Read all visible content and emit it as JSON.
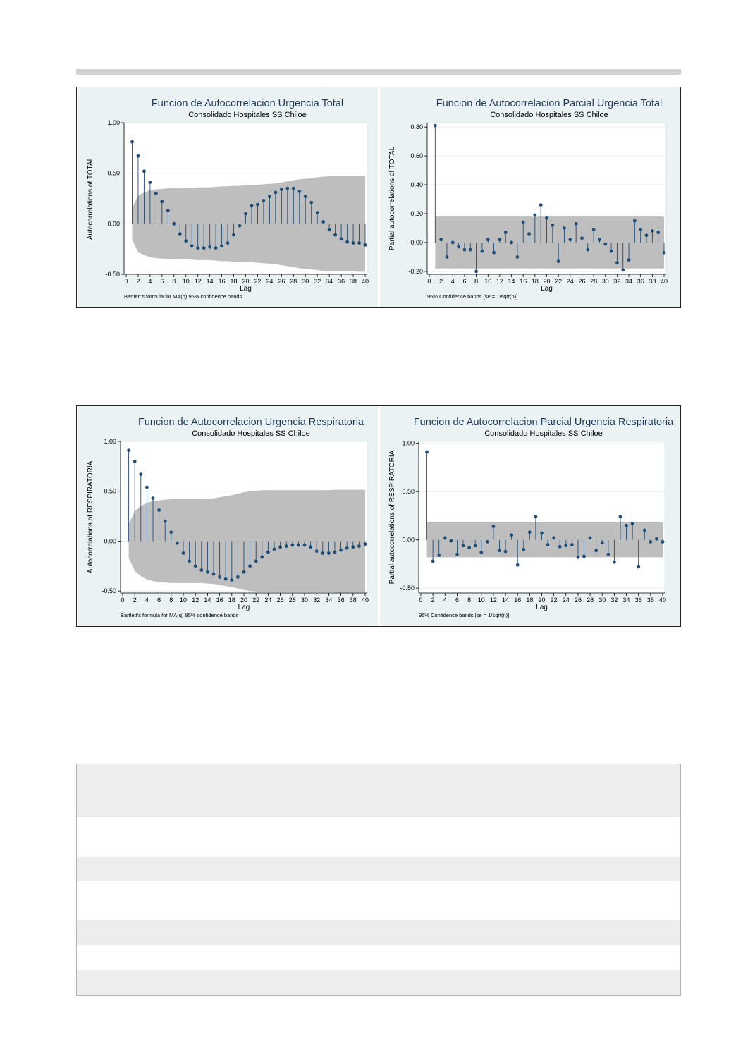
{
  "charts": [
    {
      "title": "Funcion de Autocorrelacion Urgencia Total",
      "subtitle": "Consolidado Hospitales SS Chiloe",
      "ylabel": "Autocorrelations of TOTAL",
      "xlabel": "Lag",
      "note": "Bartlett's formula for MA(q) 95% confidence bands"
    },
    {
      "title": "Funcion de Autocorrelacion Parcial Urgencia Total",
      "subtitle": "Consolidado Hospitales SS Chiloe",
      "ylabel": "Partial autocorrelations of TOTAL",
      "xlabel": "Lag",
      "note": "95% Confidence bands [se = 1/sqrt(n)]"
    },
    {
      "title": "Funcion de Autocorrelacion Urgencia Respiratoria",
      "subtitle": "Consolidado Hospitales SS Chiloe",
      "ylabel": "Autocorrelations of RESPIRATORIA",
      "xlabel": "Lag",
      "note": "Bartlett's formula for MA(q) 95% confidence bands"
    },
    {
      "title": "Funcion de Autocorrelacion Parcial Urgencia Respiratoria",
      "subtitle": "Consolidado Hospitales SS Chiloe",
      "ylabel": "Partial autocorrelations of RESPIRATORIA",
      "xlabel": "Lag",
      "note": "95% Confidence bands [se = 1/sqrt(n)]"
    }
  ],
  "colors": {
    "marker": "#1f4e79",
    "band": "#bebebe",
    "plot_bg": "#ffffff",
    "graph_bg": "#eaf2f3",
    "title": "#1f3a5c"
  },
  "chart_data": [
    {
      "type": "stem",
      "title": "Funcion de Autocorrelacion Urgencia Total",
      "subtitle": "Consolidado Hospitales SS Chiloe",
      "xlabel": "Lag",
      "ylabel": "Autocorrelations of TOTAL",
      "note": "Bartlett's formula for MA(q) 95% confidence bands",
      "ylim": [
        -0.5,
        1.0
      ],
      "yticks": [
        "1.00",
        "0.50",
        "0.00",
        "-0.50"
      ],
      "ytick_values": [
        1.0,
        0.5,
        0.0,
        -0.5
      ],
      "xlim": [
        0,
        40
      ],
      "xticks": [
        0,
        2,
        4,
        6,
        8,
        10,
        12,
        14,
        16,
        18,
        20,
        22,
        24,
        26,
        28,
        30,
        32,
        34,
        36,
        38,
        40
      ],
      "grid": true,
      "x": [
        1,
        2,
        3,
        4,
        5,
        6,
        7,
        8,
        9,
        10,
        11,
        12,
        13,
        14,
        15,
        16,
        17,
        18,
        19,
        20,
        21,
        22,
        23,
        24,
        25,
        26,
        27,
        28,
        29,
        30,
        31,
        32,
        33,
        34,
        35,
        36,
        37,
        38,
        39,
        40
      ],
      "values": [
        0.81,
        0.67,
        0.52,
        0.41,
        0.3,
        0.22,
        0.13,
        0.0,
        -0.1,
        -0.17,
        -0.22,
        -0.24,
        -0.24,
        -0.23,
        -0.24,
        -0.22,
        -0.19,
        -0.11,
        -0.02,
        0.1,
        0.18,
        0.19,
        0.23,
        0.27,
        0.31,
        0.34,
        0.35,
        0.35,
        0.32,
        0.27,
        0.21,
        0.11,
        0.02,
        -0.06,
        -0.11,
        -0.15,
        -0.18,
        -0.19,
        -0.19,
        -0.21
      ],
      "band": [
        0.16,
        0.28,
        0.31,
        0.33,
        0.34,
        0.345,
        0.35,
        0.35,
        0.35,
        0.35,
        0.355,
        0.36,
        0.36,
        0.36,
        0.365,
        0.37,
        0.37,
        0.375,
        0.375,
        0.38,
        0.38,
        0.385,
        0.39,
        0.395,
        0.4,
        0.41,
        0.42,
        0.43,
        0.44,
        0.445,
        0.45,
        0.46,
        0.465,
        0.47,
        0.47,
        0.47,
        0.47,
        0.47,
        0.475,
        0.475
      ]
    },
    {
      "type": "stem",
      "title": "Funcion de Autocorrelacion Parcial Urgencia Total",
      "subtitle": "Consolidado Hospitales SS Chiloe",
      "xlabel": "Lag",
      "ylabel": "Partial autocorrelations of TOTAL",
      "note": "95% Confidence bands [se = 1/sqrt(n)]",
      "ylim": [
        -0.22,
        0.83
      ],
      "yticks": [
        "0.80",
        "0.60",
        "0.40",
        "0.20",
        "0.00",
        "-0.20"
      ],
      "ytick_values": [
        0.8,
        0.6,
        0.4,
        0.2,
        0.0,
        -0.2
      ],
      "xlim": [
        0,
        40
      ],
      "xticks": [
        0,
        2,
        4,
        6,
        8,
        10,
        12,
        14,
        16,
        18,
        20,
        22,
        24,
        26,
        28,
        30,
        32,
        34,
        36,
        38,
        40
      ],
      "grid": true,
      "x": [
        1,
        2,
        3,
        4,
        5,
        6,
        7,
        8,
        9,
        10,
        11,
        12,
        13,
        14,
        15,
        16,
        17,
        18,
        19,
        20,
        21,
        22,
        23,
        24,
        25,
        26,
        27,
        28,
        29,
        30,
        31,
        32,
        33,
        34,
        35,
        36,
        37,
        38,
        39,
        40
      ],
      "values": [
        0.81,
        0.02,
        -0.1,
        0.0,
        -0.03,
        -0.05,
        -0.05,
        -0.2,
        -0.06,
        0.02,
        -0.07,
        0.02,
        0.07,
        0.0,
        -0.1,
        0.14,
        0.06,
        0.19,
        0.26,
        0.17,
        0.12,
        -0.13,
        0.1,
        0.02,
        0.13,
        0.03,
        -0.05,
        0.09,
        0.02,
        -0.01,
        -0.06,
        -0.14,
        -0.19,
        -0.12,
        0.15,
        0.09,
        0.05,
        0.08,
        0.07,
        -0.07
      ],
      "band_const": 0.18
    },
    {
      "type": "stem",
      "title": "Funcion de Autocorrelacion Urgencia Respiratoria",
      "subtitle": "Consolidado Hospitales SS Chiloe",
      "xlabel": "Lag",
      "ylabel": "Autocorrelations of RESPIRATORIA",
      "note": "Bartlett's formula for MA(q) 95% confidence bands",
      "ylim": [
        -0.52,
        1.0
      ],
      "yticks": [
        "1.00",
        "0.50",
        "0.00",
        "-0.50"
      ],
      "ytick_values": [
        1.0,
        0.5,
        0.0,
        -0.5
      ],
      "xlim": [
        0,
        40
      ],
      "xticks": [
        0,
        2,
        4,
        6,
        8,
        10,
        12,
        14,
        16,
        18,
        20,
        22,
        24,
        26,
        28,
        30,
        32,
        34,
        36,
        38,
        40
      ],
      "grid": true,
      "x": [
        1,
        2,
        3,
        4,
        5,
        6,
        7,
        8,
        9,
        10,
        11,
        12,
        13,
        14,
        15,
        16,
        17,
        18,
        19,
        20,
        21,
        22,
        23,
        24,
        25,
        26,
        27,
        28,
        29,
        30,
        31,
        32,
        33,
        34,
        35,
        36,
        37,
        38,
        39,
        40
      ],
      "values": [
        0.91,
        0.8,
        0.67,
        0.54,
        0.43,
        0.31,
        0.2,
        0.09,
        -0.02,
        -0.12,
        -0.2,
        -0.25,
        -0.29,
        -0.31,
        -0.33,
        -0.36,
        -0.38,
        -0.39,
        -0.36,
        -0.31,
        -0.25,
        -0.2,
        -0.16,
        -0.11,
        -0.08,
        -0.06,
        -0.05,
        -0.04,
        -0.04,
        -0.04,
        -0.06,
        -0.1,
        -0.12,
        -0.12,
        -0.11,
        -0.09,
        -0.07,
        -0.06,
        -0.05,
        -0.03
      ],
      "band": [
        0.17,
        0.3,
        0.35,
        0.385,
        0.4,
        0.41,
        0.415,
        0.42,
        0.42,
        0.42,
        0.42,
        0.42,
        0.42,
        0.425,
        0.43,
        0.44,
        0.45,
        0.46,
        0.475,
        0.49,
        0.5,
        0.505,
        0.51,
        0.51,
        0.51,
        0.51,
        0.51,
        0.51,
        0.51,
        0.51,
        0.51,
        0.51,
        0.51,
        0.51,
        0.515,
        0.515,
        0.515,
        0.515,
        0.515,
        0.515
      ]
    },
    {
      "type": "stem",
      "title": "Funcion de Autocorrelacion Parcial Urgencia Respiratoria",
      "subtitle": "Consolidado Hospitales SS Chiloe",
      "xlabel": "Lag",
      "ylabel": "Partial autocorrelations of RESPIRATORIA",
      "note": "95% Confidence bands [se = 1/sqrt(n)]",
      "ylim": [
        -0.55,
        1.02
      ],
      "yticks": [
        "1.00",
        "0.50",
        "0.00",
        "-0.50"
      ],
      "ytick_values": [
        1.0,
        0.5,
        0.0,
        -0.5
      ],
      "xlim": [
        0,
        40
      ],
      "xticks": [
        0,
        2,
        4,
        6,
        8,
        10,
        12,
        14,
        16,
        18,
        20,
        22,
        24,
        26,
        28,
        30,
        32,
        34,
        36,
        38,
        40
      ],
      "grid": true,
      "x": [
        1,
        2,
        3,
        4,
        5,
        6,
        7,
        8,
        9,
        10,
        11,
        12,
        13,
        14,
        15,
        16,
        17,
        18,
        19,
        20,
        21,
        22,
        23,
        24,
        25,
        26,
        27,
        28,
        29,
        30,
        31,
        32,
        33,
        34,
        35,
        36,
        37,
        38,
        39,
        40
      ],
      "values": [
        0.91,
        -0.22,
        -0.16,
        0.02,
        -0.01,
        -0.15,
        -0.06,
        -0.08,
        -0.06,
        -0.13,
        -0.02,
        0.14,
        -0.11,
        -0.12,
        0.05,
        -0.26,
        -0.1,
        0.08,
        0.24,
        0.07,
        -0.05,
        0.02,
        -0.07,
        -0.06,
        -0.05,
        -0.18,
        -0.17,
        0.02,
        -0.11,
        -0.03,
        -0.15,
        -0.23,
        0.24,
        0.15,
        0.17,
        -0.28,
        0.1,
        -0.02,
        0.01,
        -0.02
      ],
      "band_const": 0.18
    }
  ],
  "table": {
    "row_shades": [
      "#ededed",
      "#ffffff",
      "#ededed",
      "#ffffff",
      "#ededed",
      "#ffffff",
      "#ededed"
    ]
  }
}
